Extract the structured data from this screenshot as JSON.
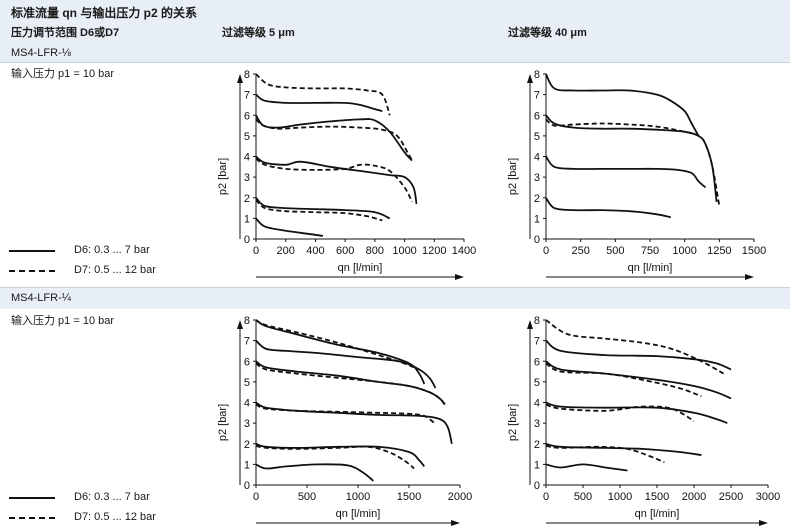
{
  "title": "标准流量 qn 与输出压力 p2 的关系",
  "header": {
    "pressure_range_label": "压力调节范围 D6或D7",
    "filter_5": "过滤等级 5 μm",
    "filter_40": "过滤等级 40 μm"
  },
  "sections": [
    {
      "model": "MS4-LFR-⅛",
      "input_pressure": "输入压力 p1 = 10 bar",
      "legend": [
        {
          "label": "D6: 0.3 ... 7 bar",
          "style": "solid"
        },
        {
          "label": "D7: 0.5 ... 12 bar",
          "style": "dashed"
        }
      ]
    },
    {
      "model": "MS4-LFR-¼",
      "input_pressure": "输入压力 p1 = 10 bar",
      "legend": [
        {
          "label": "D6: 0.3 ... 7 bar",
          "style": "solid"
        },
        {
          "label": "D7: 0.5 ... 12 bar",
          "style": "dashed"
        }
      ]
    }
  ],
  "chart_data": [
    {
      "type": "line",
      "xlabel": "qn [l/min]",
      "ylabel": "p2 [bar]",
      "xlim": [
        0,
        1400
      ],
      "ylim": [
        0,
        8
      ],
      "xticks": [
        0,
        200,
        400,
        600,
        800,
        1000,
        1200,
        1400
      ],
      "yticks": [
        0,
        1,
        2,
        3,
        4,
        5,
        6,
        7,
        8
      ],
      "series": [
        {
          "style": "dashed",
          "x": [
            0,
            80,
            200,
            400,
            600,
            750,
            850,
            900
          ],
          "y": [
            8.0,
            7.5,
            7.35,
            7.3,
            7.3,
            7.2,
            7.0,
            6.0
          ]
        },
        {
          "style": "solid",
          "x": [
            0,
            60,
            200,
            400,
            600,
            700,
            800,
            850
          ],
          "y": [
            7.0,
            6.7,
            6.6,
            6.6,
            6.6,
            6.5,
            6.3,
            6.2
          ]
        },
        {
          "style": "solid",
          "x": [
            0,
            50,
            150,
            300,
            500,
            700,
            800,
            900,
            1000,
            1050
          ],
          "y": [
            6.0,
            5.5,
            5.4,
            5.55,
            5.7,
            5.8,
            5.75,
            5.2,
            4.2,
            3.8
          ]
        },
        {
          "style": "dashed",
          "x": [
            0,
            50,
            150,
            300,
            500,
            700,
            850,
            950,
            1020,
            1050
          ],
          "y": [
            5.8,
            5.5,
            5.35,
            5.4,
            5.45,
            5.4,
            5.3,
            5.0,
            4.2,
            3.8
          ]
        },
        {
          "style": "solid",
          "x": [
            0,
            60,
            200,
            300,
            500,
            700,
            900,
            1000,
            1060,
            1080
          ],
          "y": [
            4.0,
            3.7,
            3.6,
            3.75,
            3.5,
            3.3,
            3.1,
            3.0,
            2.5,
            1.7
          ]
        },
        {
          "style": "dashed",
          "x": [
            0,
            60,
            200,
            400,
            600,
            700,
            800,
            900,
            1000,
            1050
          ],
          "y": [
            3.9,
            3.6,
            3.4,
            3.35,
            3.4,
            3.6,
            3.55,
            3.3,
            2.5,
            1.8
          ]
        },
        {
          "style": "solid",
          "x": [
            0,
            60,
            200,
            400,
            600,
            800,
            900
          ],
          "y": [
            2.0,
            1.6,
            1.5,
            1.45,
            1.4,
            1.3,
            1.0
          ]
        },
        {
          "style": "dashed",
          "x": [
            0,
            60,
            200,
            400,
            600,
            750,
            850
          ],
          "y": [
            1.9,
            1.5,
            1.35,
            1.3,
            1.25,
            1.1,
            0.9
          ]
        },
        {
          "style": "solid",
          "x": [
            0,
            60,
            200,
            350,
            450
          ],
          "y": [
            1.0,
            0.6,
            0.4,
            0.25,
            0.15
          ]
        }
      ]
    },
    {
      "type": "line",
      "xlabel": "qn [l/min]",
      "ylabel": "p2 [bar]",
      "xlim": [
        0,
        1500
      ],
      "ylim": [
        0,
        8
      ],
      "xticks": [
        0,
        250,
        500,
        750,
        1000,
        1250,
        1500
      ],
      "yticks": [
        0,
        1,
        2,
        3,
        4,
        5,
        6,
        7,
        8
      ],
      "series": [
        {
          "style": "solid",
          "x": [
            0,
            60,
            200,
            400,
            600,
            800,
            900,
            1000,
            1050,
            1100
          ],
          "y": [
            8.0,
            7.3,
            7.2,
            7.2,
            7.2,
            7.0,
            6.7,
            6.2,
            5.6,
            5.0
          ]
        },
        {
          "style": "solid",
          "x": [
            0,
            60,
            200,
            400,
            600,
            800,
            1000,
            1100,
            1150,
            1200,
            1230
          ],
          "y": [
            6.0,
            5.6,
            5.4,
            5.35,
            5.35,
            5.3,
            5.2,
            5.0,
            4.6,
            3.5,
            1.8
          ]
        },
        {
          "style": "dashed",
          "x": [
            0,
            60,
            200,
            400,
            600,
            800,
            1000,
            1100,
            1150,
            1200,
            1250
          ],
          "y": [
            5.8,
            5.5,
            5.55,
            5.6,
            5.55,
            5.45,
            5.2,
            5.0,
            4.6,
            3.5,
            1.6
          ]
        },
        {
          "style": "solid",
          "x": [
            0,
            60,
            200,
            400,
            600,
            800,
            950,
            1050,
            1100,
            1150
          ],
          "y": [
            4.0,
            3.5,
            3.4,
            3.4,
            3.4,
            3.4,
            3.35,
            3.2,
            2.8,
            2.5
          ]
        },
        {
          "style": "solid",
          "x": [
            0,
            60,
            200,
            400,
            600,
            800,
            900
          ],
          "y": [
            2.0,
            1.5,
            1.4,
            1.4,
            1.35,
            1.2,
            1.05
          ]
        }
      ]
    },
    {
      "type": "line",
      "xlabel": "qn [l/min]",
      "ylabel": "p2 [bar]",
      "xlim": [
        0,
        2000
      ],
      "ylim": [
        0,
        8
      ],
      "xticks": [
        0,
        500,
        1000,
        1500,
        2000
      ],
      "yticks": [
        0,
        1,
        2,
        3,
        4,
        5,
        6,
        7,
        8
      ],
      "series": [
        {
          "style": "solid",
          "x": [
            0,
            100,
            400,
            800,
            1200,
            1500,
            1600,
            1650
          ],
          "y": [
            8.0,
            7.7,
            7.3,
            6.8,
            6.4,
            5.9,
            5.4,
            4.9
          ]
        },
        {
          "style": "dashed",
          "x": [
            0,
            100,
            400,
            800,
            1200,
            1450,
            1550
          ],
          "y": [
            8.0,
            7.75,
            7.4,
            6.9,
            6.3,
            5.9,
            5.7
          ]
        },
        {
          "style": "solid",
          "x": [
            0,
            100,
            300,
            600,
            1000,
            1400,
            1600,
            1700,
            1760
          ],
          "y": [
            7.0,
            6.6,
            6.5,
            6.4,
            6.2,
            6.0,
            5.6,
            5.2,
            4.7
          ]
        },
        {
          "style": "solid",
          "x": [
            0,
            100,
            400,
            800,
            1200,
            1500,
            1700,
            1800,
            1850
          ],
          "y": [
            6.0,
            5.7,
            5.5,
            5.3,
            5.0,
            4.8,
            4.5,
            4.2,
            3.9
          ]
        },
        {
          "style": "dashed",
          "x": [
            0,
            100,
            400,
            800,
            1200,
            1500,
            1700,
            1800,
            1870
          ],
          "y": [
            5.9,
            5.6,
            5.4,
            5.2,
            5.0,
            4.8,
            4.5,
            4.2,
            3.8
          ]
        },
        {
          "style": "solid",
          "x": [
            0,
            100,
            400,
            800,
            1200,
            1600,
            1800,
            1880,
            1920
          ],
          "y": [
            4.0,
            3.75,
            3.6,
            3.5,
            3.4,
            3.35,
            3.2,
            2.8,
            2.0
          ]
        },
        {
          "style": "dashed",
          "x": [
            0,
            100,
            400,
            800,
            1200,
            1500,
            1650,
            1750
          ],
          "y": [
            3.9,
            3.7,
            3.6,
            3.55,
            3.5,
            3.45,
            3.35,
            3.0
          ]
        },
        {
          "style": "solid",
          "x": [
            0,
            100,
            400,
            800,
            1200,
            1500,
            1600,
            1650
          ],
          "y": [
            2.0,
            1.85,
            1.8,
            1.85,
            1.85,
            1.6,
            1.2,
            0.9
          ]
        },
        {
          "style": "dashed",
          "x": [
            0,
            100,
            400,
            800,
            1100,
            1300,
            1450,
            1550
          ],
          "y": [
            1.9,
            1.8,
            1.75,
            1.8,
            1.85,
            1.6,
            1.2,
            0.8
          ]
        },
        {
          "style": "solid",
          "x": [
            0,
            100,
            300,
            600,
            900,
            1050,
            1150
          ],
          "y": [
            1.0,
            0.8,
            0.9,
            1.0,
            0.95,
            0.6,
            0.2
          ]
        }
      ]
    },
    {
      "type": "line",
      "xlabel": "qn [l/min]",
      "ylabel": "p2 [bar]",
      "xlim": [
        0,
        3000
      ],
      "ylim": [
        0,
        8
      ],
      "xticks": [
        0,
        500,
        1000,
        1500,
        2000,
        2500,
        3000
      ],
      "yticks": [
        0,
        1,
        2,
        3,
        4,
        5,
        6,
        7,
        8
      ],
      "series": [
        {
          "style": "dashed",
          "x": [
            0,
            300,
            800,
            1300,
            1700,
            2100,
            2400
          ],
          "y": [
            8.0,
            7.3,
            7.1,
            6.9,
            6.6,
            6.0,
            5.4
          ]
        },
        {
          "style": "solid",
          "x": [
            0,
            200,
            800,
            1500,
            2000,
            2300,
            2500
          ],
          "y": [
            7.0,
            6.5,
            6.3,
            6.25,
            6.1,
            5.9,
            5.6
          ]
        },
        {
          "style": "solid",
          "x": [
            0,
            200,
            800,
            1500,
            2000,
            2300,
            2500
          ],
          "y": [
            6.0,
            5.6,
            5.4,
            5.1,
            4.8,
            4.5,
            4.2
          ]
        },
        {
          "style": "dashed",
          "x": [
            0,
            200,
            800,
            1300,
            1800,
            2100
          ],
          "y": [
            5.9,
            5.5,
            5.4,
            5.1,
            4.7,
            4.3
          ]
        },
        {
          "style": "solid",
          "x": [
            0,
            200,
            800,
            1500,
            2000,
            2300,
            2450
          ],
          "y": [
            4.0,
            3.8,
            3.75,
            3.75,
            3.5,
            3.2,
            3.0
          ]
        },
        {
          "style": "dashed",
          "x": [
            0,
            200,
            800,
            1300,
            1700,
            2000
          ],
          "y": [
            3.9,
            3.7,
            3.6,
            3.8,
            3.7,
            3.1
          ]
        },
        {
          "style": "solid",
          "x": [
            0,
            200,
            800,
            1300,
            1800,
            2100
          ],
          "y": [
            2.0,
            1.85,
            1.8,
            1.75,
            1.6,
            1.45
          ]
        },
        {
          "style": "dashed",
          "x": [
            0,
            200,
            700,
            1100,
            1400,
            1600
          ],
          "y": [
            1.9,
            1.8,
            1.85,
            1.75,
            1.4,
            1.1
          ]
        },
        {
          "style": "solid",
          "x": [
            0,
            200,
            500,
            800,
            1100
          ],
          "y": [
            1.0,
            0.85,
            1.0,
            0.85,
            0.7
          ]
        }
      ]
    }
  ]
}
